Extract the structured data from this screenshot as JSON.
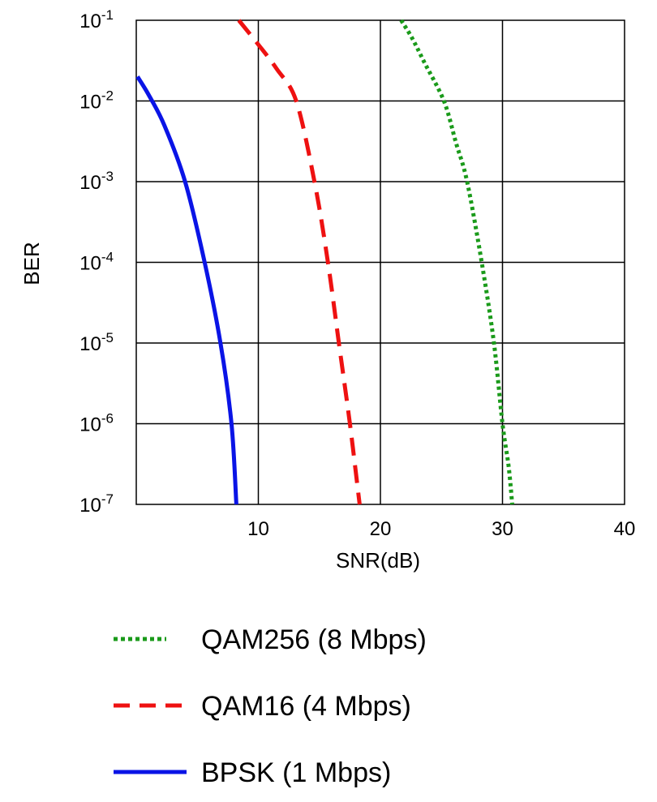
{
  "chart_data": {
    "type": "line",
    "title": "",
    "xlabel": "SNR(dB)",
    "ylabel": "BER",
    "xlim": [
      0,
      40
    ],
    "ylim": [
      1e-07,
      0.1
    ],
    "y_scale": "log",
    "x_ticks": [
      "10",
      "20",
      "30",
      "40"
    ],
    "x_tick_values": [
      10,
      20,
      30,
      40
    ],
    "y_ticks": [
      {
        "base": "10",
        "exp": "-1",
        "value": 0.1
      },
      {
        "base": "10",
        "exp": "-2",
        "value": 0.01
      },
      {
        "base": "10",
        "exp": "-3",
        "value": 0.001
      },
      {
        "base": "10",
        "exp": "-4",
        "value": 0.0001
      },
      {
        "base": "10",
        "exp": "-5",
        "value": 1e-05
      },
      {
        "base": "10",
        "exp": "-6",
        "value": 1e-06
      },
      {
        "base": "10",
        "exp": "-7",
        "value": 1e-07
      }
    ],
    "grid": true,
    "legend_position": "below",
    "series": [
      {
        "name": "QAM256 (8 Mbps)",
        "color": "#1a9a1a",
        "dash": "dotted",
        "points": [
          [
            21.7,
            0.1
          ],
          [
            22.6,
            0.06
          ],
          [
            23.6,
            0.03
          ],
          [
            25.2,
            0.01
          ],
          [
            26.2,
            0.003
          ],
          [
            27.1,
            0.001
          ],
          [
            28.3,
            0.0001
          ],
          [
            29.3,
            1e-05
          ],
          [
            30.0,
            1e-06
          ],
          [
            30.5,
            3e-07
          ],
          [
            30.8,
            1e-07
          ]
        ]
      },
      {
        "name": "QAM16 (4 Mbps)",
        "color": "#ee1111",
        "dash": "dashed",
        "points": [
          [
            8.4,
            0.1
          ],
          [
            10.0,
            0.05
          ],
          [
            11.5,
            0.025
          ],
          [
            13.1,
            0.01
          ],
          [
            14.6,
            0.001
          ],
          [
            15.7,
            0.0001
          ],
          [
            16.6,
            1e-05
          ],
          [
            17.5,
            1e-06
          ],
          [
            18.3,
            1e-07
          ]
        ]
      },
      {
        "name": "BPSK (1 Mbps)",
        "color": "#0a14e6",
        "dash": "solid",
        "points": [
          [
            0.1,
            0.02
          ],
          [
            1.0,
            0.012
          ],
          [
            2.3,
            0.005
          ],
          [
            4.0,
            0.001
          ],
          [
            5.6,
            0.0001
          ],
          [
            6.9,
            1e-05
          ],
          [
            7.8,
            1e-06
          ],
          [
            8.2,
            1e-07
          ]
        ]
      }
    ],
    "legend_order": [
      "QAM256 (8 Mbps)",
      "QAM16 (4 Mbps)",
      "BPSK (1 Mbps)"
    ]
  }
}
